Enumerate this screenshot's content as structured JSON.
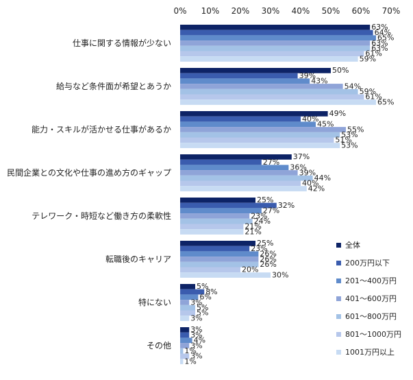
{
  "chart_data": {
    "type": "bar",
    "orientation": "horizontal",
    "xlim": [
      0,
      70
    ],
    "ticks": [
      0,
      10,
      20,
      30,
      40,
      50,
      60,
      70
    ],
    "tick_format": "{v}%",
    "value_format": "{v}%",
    "grid": false,
    "legend_position": "right",
    "categories": [
      "仕事に関する情報が少ない",
      "給与など条件面が希望とあうか",
      "能力・スキルが活かせる仕事があるか",
      "民間企業との文化や仕事の進め方のギャップ",
      "テレワーク・時短など働き方の柔軟性",
      "転職後のキャリア",
      "特にない",
      "その他"
    ],
    "series": [
      {
        "name": "全体",
        "color": "#0d2366",
        "values": [
          63,
          50,
          49,
          37,
          25,
          25,
          5,
          3
        ]
      },
      {
        "name": "200万円以下",
        "color": "#3a5cae",
        "values": [
          64,
          39,
          40,
          27,
          32,
          23,
          8,
          3
        ]
      },
      {
        "name": "201～400万円",
        "color": "#5f8bcb",
        "values": [
          65,
          43,
          45,
          36,
          27,
          26,
          6,
          4
        ]
      },
      {
        "name": "401～600万円",
        "color": "#8fa4d8",
        "values": [
          63,
          54,
          55,
          39,
          23,
          26,
          3,
          3
        ]
      },
      {
        "name": "601～800万円",
        "color": "#a3c2e6",
        "values": [
          63,
          59,
          53,
          44,
          24,
          26,
          5,
          1
        ]
      },
      {
        "name": "801～1000万円",
        "color": "#b6c7eb",
        "values": [
          61,
          61,
          51,
          40,
          21,
          20,
          5,
          3
        ]
      },
      {
        "name": "1001万円以上",
        "color": "#c7dbf3",
        "values": [
          59,
          65,
          53,
          42,
          21,
          30,
          3,
          1
        ]
      }
    ]
  }
}
